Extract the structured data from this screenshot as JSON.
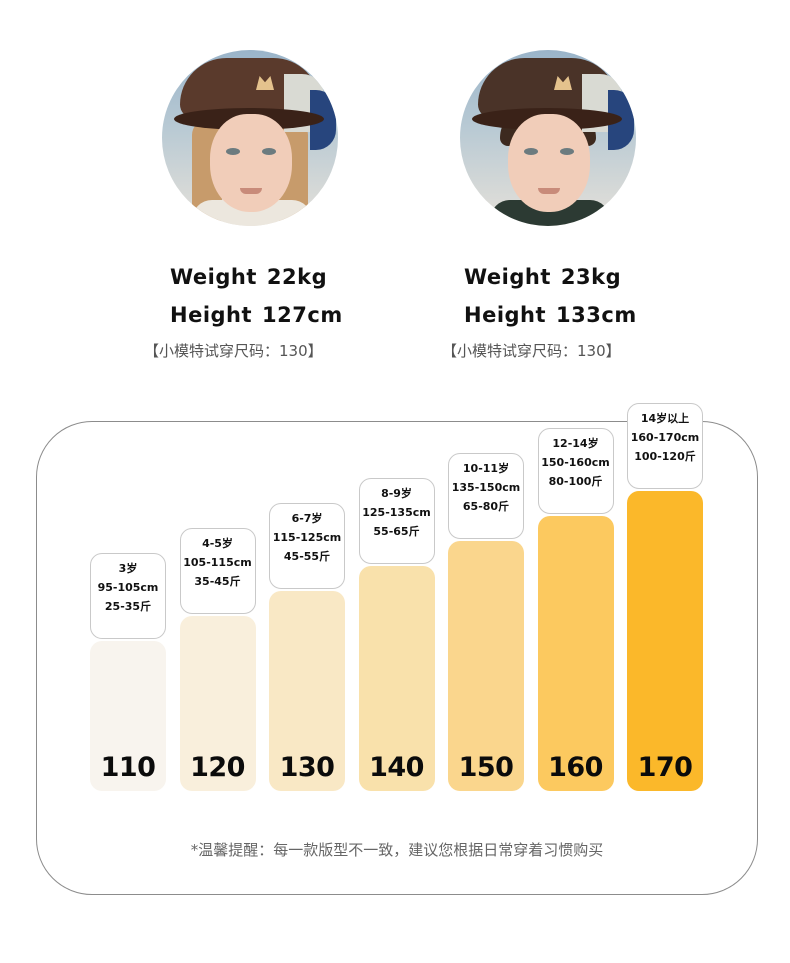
{
  "models": [
    {
      "weight_label": "Weight",
      "weight_value": "22kg",
      "height_label": "Height",
      "height_value": "127cm",
      "note": "【小模特试穿尺码：130】"
    },
    {
      "weight_label": "Weight",
      "weight_value": "23kg",
      "height_label": "Height",
      "height_value": "133cm",
      "note": "【小模特试穿尺码：130】"
    }
  ],
  "sizes": [
    {
      "age": "3岁",
      "height_range": "95-105cm",
      "weight_range": "25-35斤",
      "size": "110",
      "level": 0.3,
      "color": "#f8f4ee"
    },
    {
      "age": "4-5岁",
      "height_range": "105-115cm",
      "weight_range": "35-45斤",
      "size": "120",
      "level": 0.4,
      "color": "#f9efdc"
    },
    {
      "age": "6-7岁",
      "height_range": "115-125cm",
      "weight_range": "45-55斤",
      "size": "130",
      "level": 0.5,
      "color": "#f9e8c5"
    },
    {
      "age": "8-9岁",
      "height_range": "125-135cm",
      "weight_range": "55-65斤",
      "size": "140",
      "level": 0.6,
      "color": "#f9e1ab"
    },
    {
      "age": "10-11岁",
      "height_range": "135-150cm",
      "weight_range": "65-80斤",
      "size": "150",
      "level": 0.7,
      "color": "#fad68d"
    },
    {
      "age": "12-14岁",
      "height_range": "150-160cm",
      "weight_range": "80-100斤",
      "size": "160",
      "level": 0.8,
      "color": "#fcc95f"
    },
    {
      "age": "14岁以上",
      "height_range": "160-170cm",
      "weight_range": "100-120斤",
      "size": "170",
      "level": 0.9,
      "color": "#fbb82a"
    }
  ],
  "tip": "*温馨提醒：每一款版型不一致，建议您根据日常穿着习惯购买"
}
